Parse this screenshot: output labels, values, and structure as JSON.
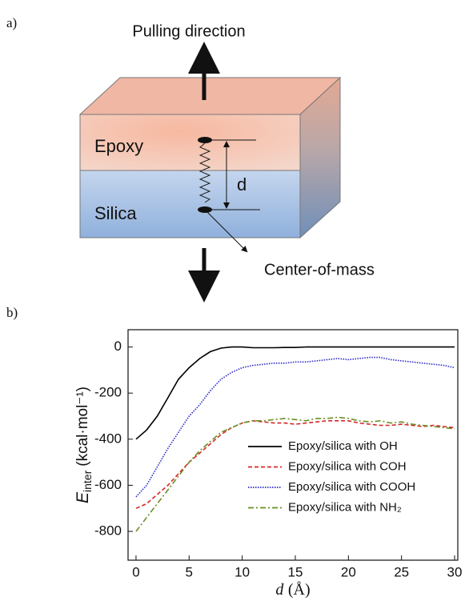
{
  "diagram": {
    "panel_label": "a)",
    "pulling_label": "Pulling direction",
    "epoxy_label": "Epoxy",
    "silica_label": "Silica",
    "distance_label": "d",
    "com_label": "Center-of-mass"
  },
  "chart_data": {
    "type": "line",
    "panel_label": "b)",
    "x_label_symbol": "d",
    "x_label_unit": "(Å)",
    "y_label_symbol": "E",
    "y_label_subscript": "inter",
    "y_label_unit": "(kcal·mol⁻¹)",
    "x": [
      0,
      1,
      2,
      3,
      4,
      5,
      6,
      7,
      8,
      9,
      10,
      11,
      12,
      13,
      14,
      15,
      16,
      17,
      18,
      19,
      20,
      21,
      22,
      23,
      24,
      25,
      26,
      27,
      28,
      29,
      30
    ],
    "series": [
      {
        "name": "Epoxy/silica with OH",
        "color": "#000000",
        "dash": "solid",
        "values": [
          -400,
          -360,
          -300,
          -220,
          -140,
          -90,
          -50,
          -20,
          -5,
          0,
          0,
          -3,
          -3,
          -3,
          -2,
          -2,
          0,
          0,
          0,
          0,
          0,
          0,
          0,
          0,
          0,
          0,
          0,
          0,
          0,
          0,
          0
        ]
      },
      {
        "name": "Epoxy/silica with COH",
        "color": "#d62728",
        "dash": "dashed",
        "values": [
          -700,
          -680,
          -640,
          -600,
          -550,
          -500,
          -460,
          -420,
          -380,
          -350,
          -330,
          -320,
          -325,
          -330,
          -330,
          -335,
          -330,
          -325,
          -320,
          -320,
          -320,
          -330,
          -335,
          -340,
          -340,
          -335,
          -340,
          -345,
          -340,
          -345,
          -350
        ]
      },
      {
        "name": "Epoxy/silica with COOH",
        "color": "#2a2ac8",
        "dash": "dotted",
        "values": [
          -650,
          -600,
          -520,
          -440,
          -370,
          -300,
          -250,
          -190,
          -140,
          -110,
          -90,
          -80,
          -75,
          -70,
          -70,
          -65,
          -65,
          -60,
          -55,
          -50,
          -55,
          -50,
          -45,
          -45,
          -55,
          -60,
          -65,
          -70,
          -75,
          -80,
          -90
        ]
      },
      {
        "name": "Epoxy/silica with NH₂",
        "color": "#6b8e23",
        "dash": "dashdot",
        "values": [
          -800,
          -740,
          -680,
          -620,
          -560,
          -500,
          -450,
          -410,
          -370,
          -350,
          -330,
          -320,
          -320,
          -315,
          -310,
          -315,
          -320,
          -310,
          -310,
          -305,
          -310,
          -320,
          -325,
          -320,
          -330,
          -325,
          -335,
          -340,
          -345,
          -350,
          -355
        ]
      }
    ],
    "xlim": [
      -0.75,
      30.3
    ],
    "ylim": [
      -925,
      75
    ],
    "xticks": [
      0,
      5,
      10,
      15,
      20,
      25,
      30
    ],
    "yticks": [
      0,
      -200,
      -400,
      -600,
      -800
    ],
    "legend": "lower-right"
  }
}
